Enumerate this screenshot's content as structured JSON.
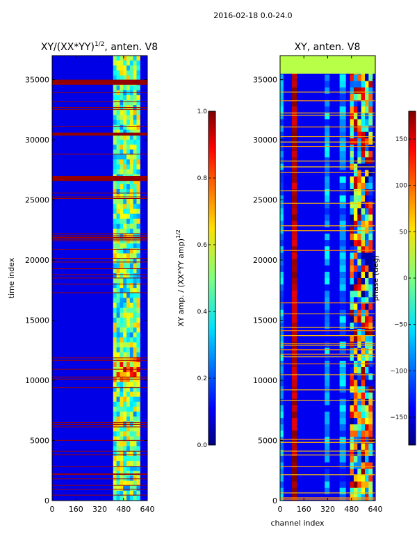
{
  "figure": {
    "suptitle": "2016-02-18 0.0-24.0"
  },
  "chart_data": [
    {
      "type": "heatmap",
      "title": "XY/(XX*YY)",
      "title_sup": "1/2",
      "title_suffix": ", anten. V8",
      "xlabel": "",
      "ylabel": "time index",
      "xlim": [
        0,
        640
      ],
      "ylim": [
        0,
        37000
      ],
      "xticks": [
        0,
        160,
        320,
        480,
        640
      ],
      "yticks": [
        0,
        5000,
        10000,
        15000,
        20000,
        25000,
        30000,
        35000
      ],
      "colorbar": {
        "label": "XY amp. / (XX*YY amp)",
        "label_sup": "1/2",
        "range": [
          0.0,
          1.0
        ],
        "ticks": [
          0.0,
          0.2,
          0.4,
          0.6,
          0.8,
          1.0
        ],
        "tick_labels": [
          "0.0",
          "0.2",
          "0.4",
          "0.6",
          "0.8",
          "1.0"
        ]
      },
      "description_values": {
        "background": 0.1,
        "saturated_bands_time_index": [
          [
            33800,
            35000
          ],
          [
            29900,
            30600
          ],
          [
            25800,
            27000
          ]
        ],
        "active_channel_range": [
          410,
          590
        ],
        "peak_region_time_index": [
          9800,
          12000
        ]
      }
    },
    {
      "type": "heatmap",
      "title": "XY, anten. V8",
      "xlabel": "channel index",
      "ylabel": "",
      "xlim": [
        0,
        640
      ],
      "ylim": [
        0,
        37000
      ],
      "xticks": [
        0,
        160,
        320,
        480,
        640
      ],
      "yticks": [
        0,
        5000,
        10000,
        15000,
        20000,
        25000,
        30000,
        35000
      ],
      "colorbar": {
        "label": "phase (deg)",
        "range": [
          -180,
          180
        ],
        "ticks": [
          -150,
          -100,
          -50,
          0,
          50,
          100,
          150
        ],
        "tick_labels": [
          "−150",
          "−100",
          "−50",
          "0",
          "50",
          "100",
          "150"
        ]
      },
      "description_values": {
        "background_phase": -140,
        "stripe_channel_ranges": [
          [
            0,
            20
          ],
          [
            80,
            110
          ],
          [
            300,
            330
          ],
          [
            400,
            440
          ],
          [
            470,
            620
          ]
        ],
        "phase_wrap_band_time_index": [
          35500,
          37000
        ]
      }
    }
  ]
}
